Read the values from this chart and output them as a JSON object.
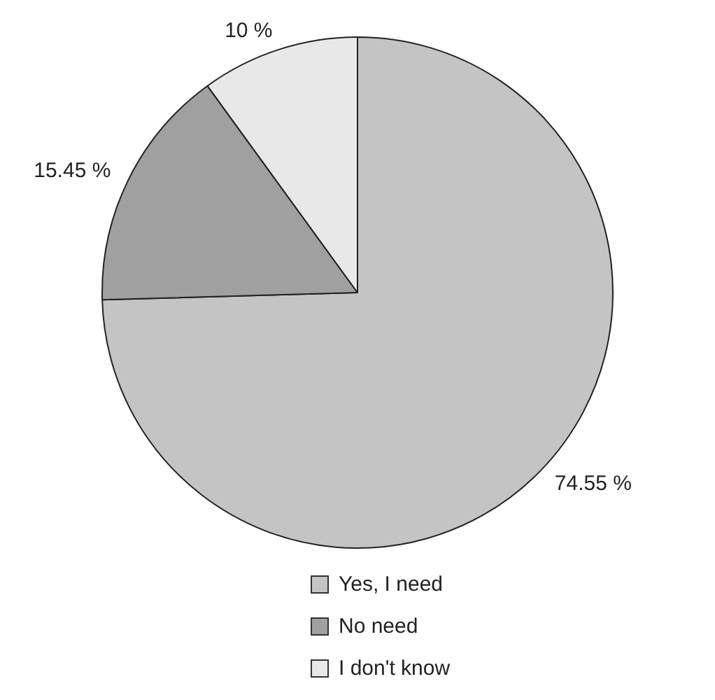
{
  "chart_data": {
    "type": "pie",
    "categories": [
      "Yes, I need",
      "No need",
      "I don't know"
    ],
    "values": [
      74.55,
      15.45,
      10
    ],
    "colors": [
      "#c4c4c4",
      "#a0a0a0",
      "#e8e8e8"
    ],
    "value_labels": [
      "74.55 %",
      "15.45 %",
      "10 %"
    ],
    "legend": "bottom"
  }
}
